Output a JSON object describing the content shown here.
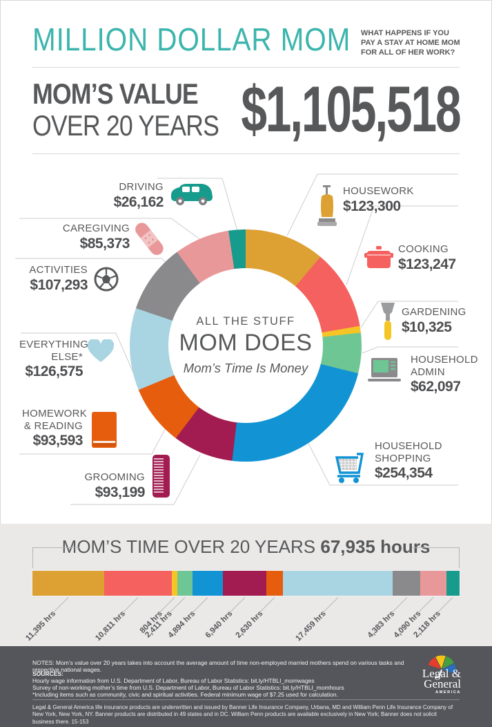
{
  "page": {
    "accent_teal": "#3bb5ac",
    "text_dark": "#57585a",
    "band_gray": "#eae9e8",
    "footer_gray": "#54565b"
  },
  "header": {
    "title": "MILLION DOLLAR MOM",
    "subtitle": "WHAT HAPPENS IF YOU PAY A STAY AT HOME MOM FOR ALL OF HER WORK?"
  },
  "value_section": {
    "label_line1": "MOM’S VALUE",
    "label_line2": "OVER 20 YEARS",
    "amount": "$1,105,518"
  },
  "donut_center": {
    "line1": "ALL THE STUFF",
    "line2": "MOM DOES",
    "line3": "Mom’s Time Is Money"
  },
  "tasks": [
    {
      "id": "housework",
      "label": "HOUSEWORK",
      "value_label": "$123,300",
      "value": 123300,
      "hours_label": "11,395 hrs",
      "hours": 11395,
      "color": "#DDA032",
      "icon": "vacuum-icon"
    },
    {
      "id": "cooking",
      "label": "COOKING",
      "value_label": "$123,247",
      "value": 123247,
      "hours_label": "10,811 hrs",
      "hours": 10811,
      "color": "#F4615E",
      "icon": "cooking-pot-icon"
    },
    {
      "id": "gardening",
      "label": "GARDENING",
      "value_label": "$10,325",
      "value": 10325,
      "hours_label": "804 hrs",
      "hours": 804,
      "color": "#F5C525",
      "icon": "trowel-icon"
    },
    {
      "id": "household-admin",
      "label": "HOUSEHOLD ADMIN",
      "value_label": "$62,097",
      "value": 62097,
      "hours_label": "2,411 hrs",
      "hours": 2411,
      "color": "#6EC695",
      "icon": "laptop-icon"
    },
    {
      "id": "household-shopping",
      "label": "HOUSEHOLD SHOPPING",
      "value_label": "$254,354",
      "value": 254354,
      "hours_label": "4,894 hrs",
      "hours": 4894,
      "color": "#1193D4",
      "icon": "shopping-cart-icon"
    },
    {
      "id": "grooming",
      "label": "GROOMING",
      "value_label": "$93,199",
      "value": 93199,
      "hours_label": "6,940 hrs",
      "hours": 6940,
      "color": "#A21C51",
      "icon": "comb-icon"
    },
    {
      "id": "homework-reading",
      "label": "HOMEWORK & READING",
      "value_label": "$93,593",
      "value": 93593,
      "hours_label": "2,630 hrs",
      "hours": 2630,
      "color": "#E55D0D",
      "icon": "book-icon"
    },
    {
      "id": "everything-else",
      "label": "EVERYTHING ELSE*",
      "value_label": "$126,575",
      "value": 126575,
      "hours_label": "17,459 hrs",
      "hours": 17459,
      "color": "#A9D4E2",
      "icon": "heart-icon"
    },
    {
      "id": "activities",
      "label": "ACTIVITIES",
      "value_label": "$107,293",
      "value": 107293,
      "hours_label": "4,383 hrs",
      "hours": 4383,
      "color": "#8A8A8D",
      "icon": "soccer-ball-icon"
    },
    {
      "id": "caregiving",
      "label": "CAREGIVING",
      "value_label": "$85,373",
      "value": 85373,
      "hours_label": "4,090 hrs",
      "hours": 4090,
      "color": "#E9989A",
      "icon": "bandage-icon"
    },
    {
      "id": "driving",
      "label": "DRIVING",
      "value_label": "$26,162",
      "value": 26162,
      "hours_label": "2,118 hrs",
      "hours": 2118,
      "color": "#169B8C",
      "icon": "minivan-icon"
    }
  ],
  "time_section": {
    "title": "MOM’S TIME OVER 20 YEARS ",
    "title_bold": "67,935 hours",
    "total_hours": 67935
  },
  "footer": {
    "notes": "NOTES: Mom’s value over 20 years takes into account the average amount of time non-employed married mothers spend on various tasks and respective national wages.",
    "sources_title": "SOURCES:",
    "sources": [
      "Hourly wage information from U.S. Department of Labor, Bureau of Labor Statistics: bit.ly/HTBLI_momwages",
      "Survey of non-working mother’s time from U.S. Department of Labor, Bureau of Labor Statistics: bit.ly/HTBLI_momhours",
      "*Including items such as community, civic and spiritual activities. Federal minimum wage of $7.25 used for calculation."
    ],
    "disclaimer": "Legal & General America life insurance products are underwritten and issued by Banner Life Insurance Company, Urbana, MD and William Penn Life Insurance Company of New York, New York, NY. Banner products are distributed in 49 states and in DC. William Penn products are available exclusively in New York; Banner does not solicit business there. 15-153",
    "logo": {
      "line1": "Legal &",
      "line2": "General",
      "line3": "AMERICA"
    }
  },
  "chart_data": [
    {
      "type": "pie",
      "donut": true,
      "title": "ALL THE STUFF MOM DOES — Mom’s Time Is Money",
      "subtitle": "MOM’S VALUE OVER 20 YEARS $1,105,518",
      "categories": [
        "Housework",
        "Cooking",
        "Gardening",
        "Household Admin",
        "Household Shopping",
        "Grooming",
        "Homework & Reading",
        "Everything Else*",
        "Activities",
        "Caregiving",
        "Driving"
      ],
      "values": [
        123300,
        123247,
        10325,
        62097,
        254354,
        93199,
        93593,
        126575,
        107293,
        85373,
        26162
      ],
      "colors": [
        "#DDA032",
        "#F4615E",
        "#F5C525",
        "#6EC695",
        "#1193D4",
        "#A21C51",
        "#E55D0D",
        "#A9D4E2",
        "#8A8A8D",
        "#E9989A",
        "#169B8C"
      ],
      "total": 1105518,
      "units": "USD over 20 years",
      "start_angle_deg": 0,
      "direction": "clockwise",
      "legend_position": "callouts-around-donut"
    },
    {
      "type": "bar",
      "variant": "stacked-horizontal-single-row",
      "title": "MOM’S TIME OVER 20 YEARS 67,935 hours",
      "categories": [
        "Housework",
        "Cooking",
        "Gardening",
        "Household Admin",
        "Household Shopping",
        "Grooming",
        "Homework & Reading",
        "Everything Else*",
        "Activities",
        "Caregiving",
        "Driving"
      ],
      "values": [
        11395,
        10811,
        804,
        2411,
        4894,
        6940,
        2630,
        17459,
        4383,
        4090,
        2118
      ],
      "colors": [
        "#DDA032",
        "#F4615E",
        "#F5C525",
        "#6EC695",
        "#1193D4",
        "#A21C51",
        "#E55D0D",
        "#A9D4E2",
        "#8A8A8D",
        "#E9989A",
        "#169B8C"
      ],
      "total": 67935,
      "units": "hours",
      "data_labels": [
        "11,395 hrs",
        "10,811 hrs",
        "804 hrs",
        "2,411 hrs",
        "4,894 hrs",
        "6,940 hrs",
        "2,630 hrs",
        "17,459 hrs",
        "4,383 hrs",
        "4,090 hrs",
        "2,118 hrs"
      ]
    }
  ]
}
